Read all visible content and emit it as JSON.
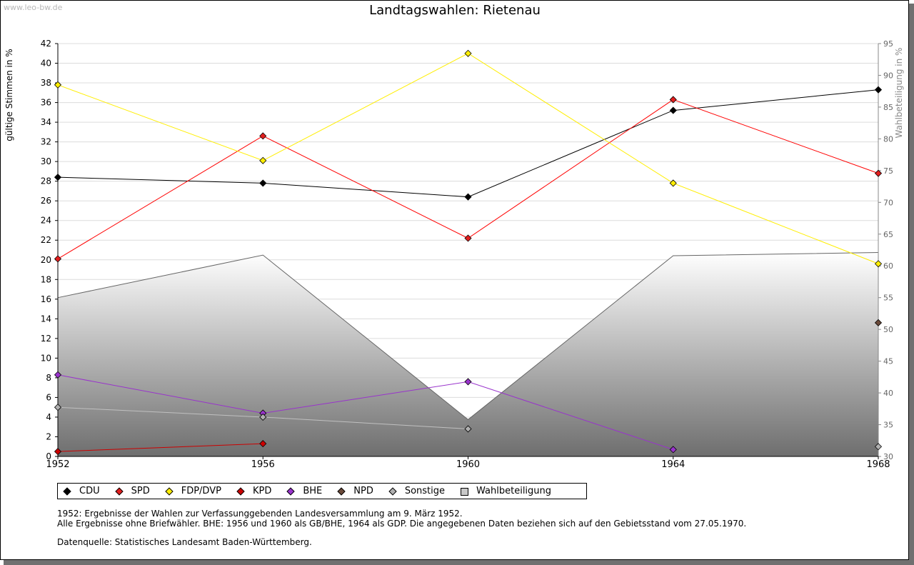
{
  "watermark": "www.leo-bw.de",
  "chart_data": {
    "type": "line",
    "title": "Landtagswahlen: Rietenau",
    "ylabel": "gültige Stimmen in %",
    "y2label": "Wahlbeteiligung in %",
    "xlabel": "",
    "x": [
      1952,
      1956,
      1960,
      1964,
      1968
    ],
    "xticks": [
      "1952",
      "1956",
      "1960",
      "1964",
      "1968"
    ],
    "ylim": [
      0,
      42
    ],
    "yticks": [
      "0",
      "2",
      "4",
      "6",
      "8",
      "10",
      "12",
      "14",
      "16",
      "18",
      "20",
      "22",
      "24",
      "26",
      "28",
      "30",
      "32",
      "34",
      "36",
      "38",
      "40",
      "42"
    ],
    "y2lim": [
      30,
      95
    ],
    "y2ticks": [
      "30",
      "35",
      "40",
      "45",
      "50",
      "55",
      "60",
      "65",
      "70",
      "75",
      "80",
      "85",
      "90",
      "95"
    ],
    "grid": true,
    "area": {
      "name": "Wahlbeteiligung",
      "axis": "right",
      "values": [
        55.0,
        61.7,
        35.8,
        61.6,
        62.1
      ]
    },
    "series": [
      {
        "name": "CDU",
        "color": "#000000",
        "line": "#000000",
        "values": [
          28.4,
          27.8,
          26.4,
          35.2,
          37.3
        ]
      },
      {
        "name": "SPD",
        "color": "#e31e1e",
        "line": "#ff0000",
        "values": [
          20.1,
          32.6,
          22.2,
          36.3,
          28.8
        ]
      },
      {
        "name": "FDP/DVP",
        "color": "#ffee00",
        "line": "#ffee00",
        "values": [
          37.8,
          30.1,
          41.0,
          27.8,
          19.6
        ]
      },
      {
        "name": "KPD",
        "color": "#cc0000",
        "line": "#cc0000",
        "values": [
          0.5,
          1.3,
          null,
          null,
          null
        ]
      },
      {
        "name": "BHE",
        "color": "#9933cc",
        "line": "#9933cc",
        "values": [
          8.3,
          4.4,
          7.6,
          0.7,
          null
        ]
      },
      {
        "name": "NPD",
        "color": "#6b4a3a",
        "line": "#6b4a3a",
        "values": [
          null,
          null,
          null,
          null,
          13.6
        ]
      },
      {
        "name": "Sonstige",
        "color": "#b0b0b0",
        "line": "#c0c0c0",
        "values": [
          5.0,
          4.0,
          2.8,
          null,
          1.0
        ]
      }
    ],
    "legend_position": "bottom-left",
    "legend": [
      "CDU",
      "SPD",
      "FDP/DVP",
      "KPD",
      "BHE",
      "NPD",
      "Sonstige",
      "Wahlbeteiligung"
    ]
  },
  "notes": {
    "line1": "1952: Ergebnisse der Wahlen zur Verfassunggebenden Landesversammlung am 9. März 1952.",
    "line2": "Alle Ergebnisse ohne Briefwähler. BHE: 1956 und 1960 als GB/BHE, 1964 als GDP. Die angegebenen Daten beziehen sich auf den Gebietsstand vom 27.05.1970.",
    "line3": "Datenquelle: Statistisches Landesamt Baden-Württemberg."
  }
}
